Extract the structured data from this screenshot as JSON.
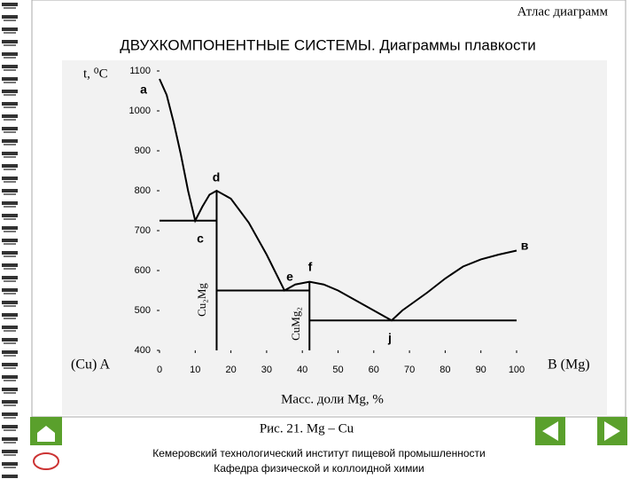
{
  "header": "Атлас диаграмм",
  "title": "ДВУХКОМПОНЕНТНЫЕ СИСТЕМЫ. Диаграммы плавкости",
  "chart_data": {
    "type": "line",
    "y_label": "t, ⁰C",
    "x_label": "Масс. доли Mg, %",
    "left_label": "(Cu) A",
    "right_label": "B (Mg)",
    "color": "#000000",
    "xlim": [
      0,
      100
    ],
    "xticks": [
      0,
      10,
      20,
      30,
      40,
      50,
      60,
      70,
      80,
      90,
      100
    ],
    "ylim": [
      400,
      1100
    ],
    "yticks": [
      400,
      500,
      600,
      700,
      800,
      900,
      1000,
      1100
    ],
    "series": [
      {
        "x": [
          0,
          2,
          4,
          6,
          8,
          10,
          12,
          14,
          16,
          20,
          25,
          30,
          35,
          38,
          42,
          46,
          50,
          55,
          60,
          65,
          68,
          75,
          80,
          85,
          90,
          95,
          100
        ],
        "values": [
          1080,
          1040,
          970,
          890,
          800,
          725,
          760,
          790,
          800,
          780,
          720,
          640,
          550,
          565,
          572,
          565,
          550,
          525,
          500,
          475,
          500,
          545,
          580,
          610,
          628,
          640,
          650
        ]
      },
      {
        "x": [
          0,
          16
        ],
        "values": [
          725,
          725
        ]
      },
      {
        "x": [
          16,
          42
        ],
        "values": [
          550,
          550
        ]
      },
      {
        "x": [
          42,
          100
        ],
        "values": [
          475,
          475
        ]
      },
      {
        "x": [
          16,
          16
        ],
        "values": [
          400,
          800
        ]
      },
      {
        "x": [
          42,
          42
        ],
        "values": [
          400,
          572
        ]
      }
    ],
    "annotations": [
      "a",
      "c",
      "d",
      "e",
      "f",
      "j",
      "в",
      "Cu₂Mg",
      "CuMg₂"
    ]
  },
  "caption": "Рис. 21. Mg – Cu",
  "footer": [
    "Кемеровский технологический институт пищевой промышленности",
    "Кафедра физической и коллоидной химии"
  ]
}
